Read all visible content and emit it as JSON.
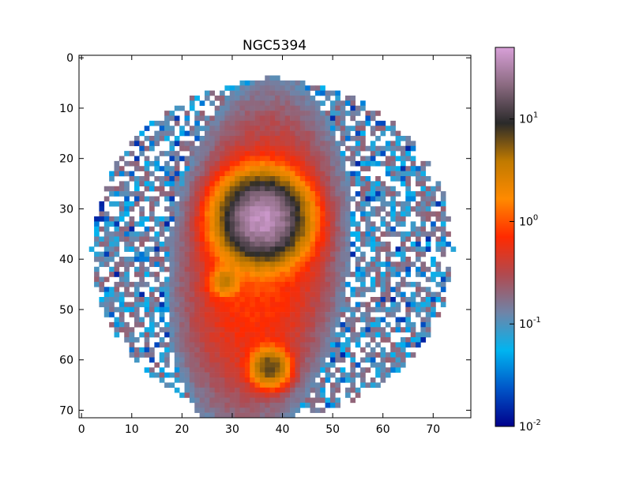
{
  "chart_data": {
    "type": "heatmap",
    "title": "NGC5394",
    "xlabel": "",
    "ylabel": "",
    "xlim": [
      -0.5,
      77.5
    ],
    "ylim": [
      71.5,
      -0.5
    ],
    "grid_size": [
      78,
      72
    ],
    "x_ticks": [
      {
        "value": 0,
        "label": "0"
      },
      {
        "value": 10,
        "label": "10"
      },
      {
        "value": 20,
        "label": "20"
      },
      {
        "value": 30,
        "label": "30"
      },
      {
        "value": 40,
        "label": "40"
      },
      {
        "value": 50,
        "label": "50"
      },
      {
        "value": 60,
        "label": "60"
      },
      {
        "value": 70,
        "label": "70"
      }
    ],
    "y_ticks": [
      {
        "value": 0,
        "label": "0"
      },
      {
        "value": 10,
        "label": "10"
      },
      {
        "value": 20,
        "label": "20"
      },
      {
        "value": 30,
        "label": "30"
      },
      {
        "value": 40,
        "label": "40"
      },
      {
        "value": 50,
        "label": "50"
      },
      {
        "value": 60,
        "label": "60"
      },
      {
        "value": 70,
        "label": "70"
      }
    ],
    "colorbar": {
      "scale": "log",
      "range": [
        0.01,
        50
      ],
      "ticks": [
        {
          "value": 0.01,
          "base": "10",
          "exp": "-2"
        },
        {
          "value": 0.1,
          "base": "10",
          "exp": "-1"
        },
        {
          "value": 1,
          "base": "10",
          "exp": "0"
        },
        {
          "value": 10,
          "base": "10",
          "exp": "1"
        }
      ],
      "colors": [
        "#00008b",
        "#0055c8",
        "#00b4f0",
        "#6f84a8",
        "#b04a50",
        "#ff2a00",
        "#ff8a00",
        "#c07a00",
        "#2a2a2a",
        "#8a6a80",
        "#d8a0d8"
      ]
    },
    "sources": [
      {
        "label": "nucleus",
        "x": 36,
        "y": 32,
        "peak": 40,
        "sigma": 4.0
      },
      {
        "label": "knot-left",
        "x": 28.5,
        "y": 44.5,
        "peak": 3.0,
        "sigma": 1.6
      },
      {
        "label": "knot-lower",
        "x": 37.5,
        "y": 61.5,
        "peak": 7.0,
        "sigma": 2.0
      }
    ],
    "diffuse_component": {
      "level": 0.9,
      "sigma_along": 18,
      "sigma_across": 9
    },
    "halo": {
      "level": 0.11,
      "center_x": 38,
      "center_y": 38,
      "radius": 36
    },
    "coverage": {
      "min_x": 0,
      "max_x": 77,
      "min_y": 2,
      "max_y": 71
    }
  }
}
